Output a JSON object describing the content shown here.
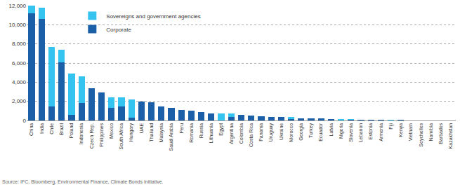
{
  "chart_data": {
    "type": "bar",
    "stacked": true,
    "grid": true,
    "legend": "upper left",
    "categories": [
      "China",
      "India",
      "Chile",
      "Brazil",
      "Poland",
      "Indonesia",
      "Czech Rep.",
      "Philippines",
      "Mexico",
      "South Africa",
      "Hungary",
      "UAE",
      "Thailand",
      "Malaysia",
      "Saudi Arabia",
      "Peru",
      "Romania",
      "Russia",
      "Lithuania",
      "Egypt",
      "Argentina",
      "Colombia",
      "Costa Rica",
      "Panama",
      "Uruguay",
      "Ukraine",
      "Morocco",
      "Georgia",
      "Turkey",
      "Ecuador",
      "Latvia",
      "Nigeria",
      "Slovenia",
      "Lebanon",
      "Estonia",
      "Armenia",
      "Fiji",
      "Kenya",
      "Vietnam",
      "Seychelles",
      "Namibia",
      "Barbados",
      "Kazakhstan"
    ],
    "series": [
      {
        "name": "Sovereigns and government agencies",
        "color": "#35c3ef",
        "values": [
          800,
          1200,
          6200,
          1300,
          4300,
          2800,
          0,
          0,
          1100,
          900,
          1900,
          0,
          0,
          0,
          0,
          0,
          0,
          0,
          0,
          750,
          300,
          0,
          0,
          0,
          0,
          0,
          200,
          0,
          0,
          0,
          0,
          150,
          80,
          0,
          0,
          0,
          50,
          0,
          0,
          15,
          0,
          0,
          0
        ]
      },
      {
        "name": "Corporate",
        "color": "#1b5fa8",
        "values": [
          11200,
          10600,
          1500,
          6100,
          600,
          1800,
          3400,
          2900,
          1300,
          1500,
          300,
          2000,
          1900,
          1500,
          1300,
          1100,
          1000,
          900,
          700,
          0,
          400,
          600,
          500,
          450,
          350,
          350,
          150,
          250,
          250,
          200,
          150,
          0,
          50,
          80,
          70,
          60,
          0,
          40,
          35,
          0,
          10,
          10,
          10
        ]
      }
    ],
    "ylim": [
      0,
      12000
    ],
    "yticks": [
      0,
      {
        "value": 2000,
        "label": "2,000"
      },
      {
        "value": 4000,
        "label": "4,000"
      },
      {
        "value": 6000,
        "label": "6,000"
      },
      {
        "value": 8000,
        "label": "8,000"
      },
      {
        "value": 10000,
        "label": "10,000"
      },
      {
        "value": 12000,
        "label": "12,000"
      }
    ],
    "annotations": [
      "Source: IFC, Bloomberg, Environmental Finance, Climate Bonds Initiative."
    ]
  }
}
